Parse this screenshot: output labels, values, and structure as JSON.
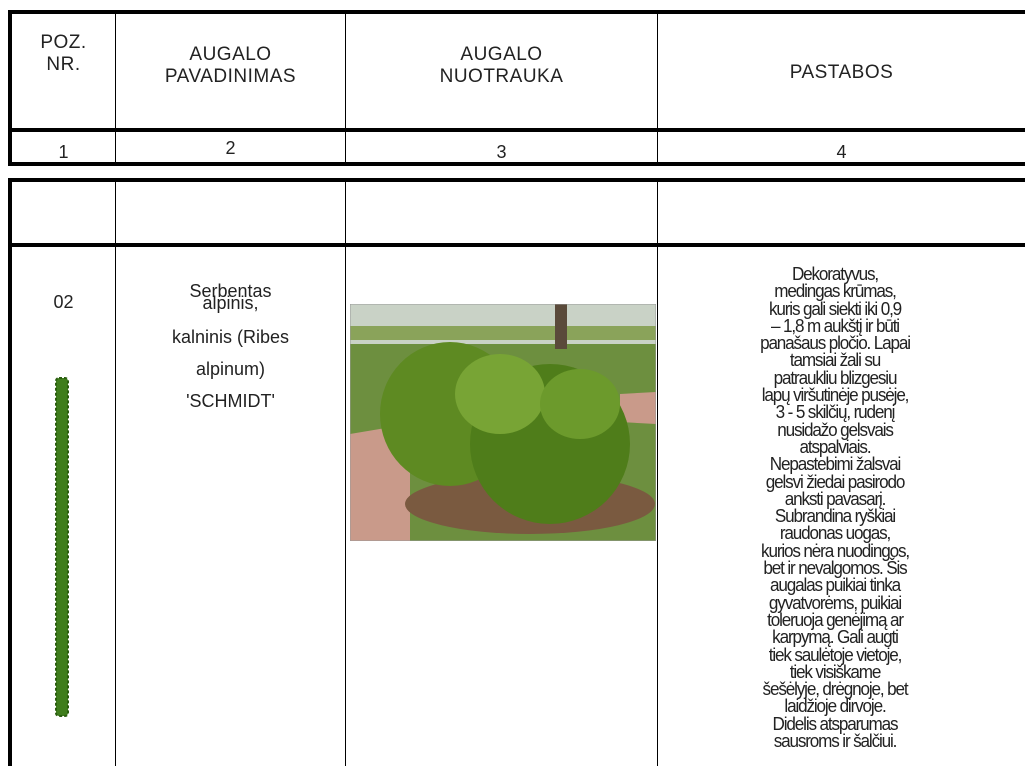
{
  "header": {
    "columns": [
      {
        "lines": [
          "POZ.",
          "NR."
        ]
      },
      {
        "lines": [
          "AUGALO",
          "PAVADINIMAS"
        ]
      },
      {
        "lines": [
          "AUGALO",
          "NUOTRAUKA"
        ]
      },
      {
        "lines": [
          "PASTABOS"
        ]
      }
    ],
    "numbers": [
      "1",
      "2",
      "3",
      "4"
    ]
  },
  "rows": [
    {
      "position": "02",
      "name_lines": [
        "Serbentas",
        "alpinis,",
        "kalninis (Ribes",
        "alpinum)",
        "'SCHMIDT'"
      ],
      "notes_lines": [
        "Dekoratyvus,",
        "medingas krūmas,",
        "kuris gali siekti iki 0,9",
        "– 1,8 m aukštį ir būti",
        "panašaus pločio. Lapai",
        "tamsiai žali su",
        "patraukliu blizgesiu",
        "lapų viršutinėje pusėje,",
        "3 - 5 skilčių, rudenį",
        "nusidažo gelsvais",
        "atspalviais.",
        "Nepastebimi žalsvai",
        "gelsvi žiedai pasirodo",
        "anksti pavasarį.",
        "Subrandina ryškiai",
        "raudonas uogas,",
        "kurios nėra nuodingos,",
        "bet ir nevalgomos. Šis",
        "augalas puikiai tinka",
        "gyvatvorėms, puikiai",
        "toleruoja genėjimą ar",
        "karpymą. Gali augti",
        "tiek saulėtoje vietoje,",
        "tiek visiškame",
        "šešėlyje, drėgnoje, bet",
        "laidžioje dirvoje.",
        "Didelis atsparumas",
        "sausroms ir šalčiui."
      ]
    }
  ]
}
